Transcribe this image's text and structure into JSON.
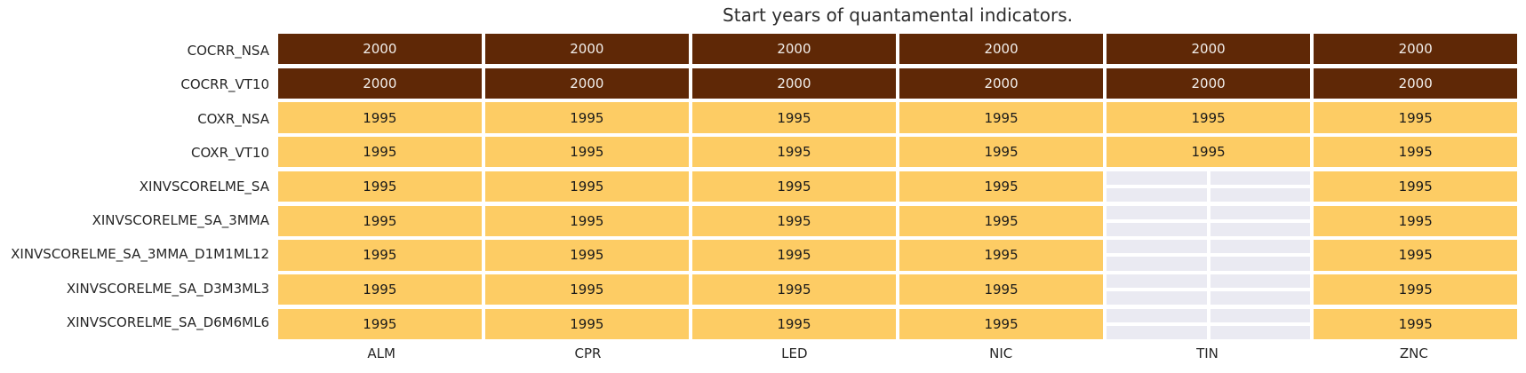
{
  "title": "Start years of quantamental indicators.",
  "colors": {
    "cell_2000_bg": "#5F2806",
    "cell_2000_text": "#F2EFEC",
    "cell_1995_bg": "#FDCC64",
    "cell_1995_text": "#1A1A1A",
    "missing_bg": "#EAEAF2",
    "grid_line": "#FFFFFF"
  },
  "heatmap": {
    "columns": [
      "ALM",
      "CPR",
      "LED",
      "NIC",
      "TIN",
      "ZNC"
    ],
    "rows": [
      {
        "label": "COCRR_NSA",
        "values": [
          "2000",
          "2000",
          "2000",
          "2000",
          "2000",
          "2000"
        ]
      },
      {
        "label": "COCRR_VT10",
        "values": [
          "2000",
          "2000",
          "2000",
          "2000",
          "2000",
          "2000"
        ]
      },
      {
        "label": "COXR_NSA",
        "values": [
          "1995",
          "1995",
          "1995",
          "1995",
          "1995",
          "1995"
        ]
      },
      {
        "label": "COXR_VT10",
        "values": [
          "1995",
          "1995",
          "1995",
          "1995",
          "1995",
          "1995"
        ]
      },
      {
        "label": "XINVSCORELME_SA",
        "values": [
          "1995",
          "1995",
          "1995",
          "1995",
          null,
          "1995"
        ]
      },
      {
        "label": "XINVSCORELME_SA_3MMA",
        "values": [
          "1995",
          "1995",
          "1995",
          "1995",
          null,
          "1995"
        ]
      },
      {
        "label": "XINVSCORELME_SA_3MMA_D1M1ML12",
        "values": [
          "1995",
          "1995",
          "1995",
          "1995",
          null,
          "1995"
        ]
      },
      {
        "label": "XINVSCORELME_SA_D3M3ML3",
        "values": [
          "1995",
          "1995",
          "1995",
          "1995",
          null,
          "1995"
        ]
      },
      {
        "label": "XINVSCORELME_SA_D6M6ML6",
        "values": [
          "1995",
          "1995",
          "1995",
          "1995",
          null,
          "1995"
        ]
      }
    ]
  },
  "chart_data": {
    "type": "heatmap",
    "title": "Start years of quantamental indicators.",
    "x_categories": [
      "ALM",
      "CPR",
      "LED",
      "NIC",
      "TIN",
      "ZNC"
    ],
    "y_categories": [
      "COCRR_NSA",
      "COCRR_VT10",
      "COXR_NSA",
      "COXR_VT10",
      "XINVSCORELME_SA",
      "XINVSCORELME_SA_3MMA",
      "XINVSCORELME_SA_3MMA_D1M1ML12",
      "XINVSCORELME_SA_D3M3ML3",
      "XINVSCORELME_SA_D6M6ML6"
    ],
    "values": [
      [
        2000,
        2000,
        2000,
        2000,
        2000,
        2000
      ],
      [
        2000,
        2000,
        2000,
        2000,
        2000,
        2000
      ],
      [
        1995,
        1995,
        1995,
        1995,
        1995,
        1995
      ],
      [
        1995,
        1995,
        1995,
        1995,
        1995,
        1995
      ],
      [
        1995,
        1995,
        1995,
        1995,
        null,
        1995
      ],
      [
        1995,
        1995,
        1995,
        1995,
        null,
        1995
      ],
      [
        1995,
        1995,
        1995,
        1995,
        null,
        1995
      ],
      [
        1995,
        1995,
        1995,
        1995,
        null,
        1995
      ],
      [
        1995,
        1995,
        1995,
        1995,
        null,
        1995
      ]
    ],
    "annotations": "each cell annotated with its year value; missing cells blank",
    "colormap": {
      "1995": "#FDCC64",
      "2000": "#5F2806"
    },
    "grid": "white cell separators; missing cells show light axes background #EAEAF2 with white gridlines",
    "legend_position": "none",
    "xlabel": "",
    "ylabel": ""
  }
}
